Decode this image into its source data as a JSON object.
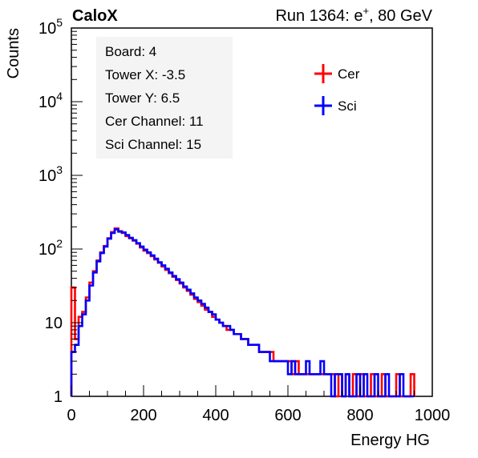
{
  "header": {
    "left": "CaloX",
    "right_prefix": "Run 1364: e",
    "right_sup": "+",
    "right_suffix": ", 80 GeV"
  },
  "info_box": [
    "Board: 4",
    "Tower X: -3.5",
    "Tower Y: 6.5",
    "Cer Channel: 11",
    "Sci Channel: 15"
  ],
  "chart_data": {
    "type": "line",
    "style": "histogram",
    "xlabel": "Energy HG",
    "ylabel": "Counts",
    "xlim": [
      0,
      1000
    ],
    "ylim": [
      1,
      100000
    ],
    "yscale": "log",
    "grid": false,
    "legend_position": "top-right",
    "x_ticks": [
      0,
      200,
      400,
      600,
      800,
      1000
    ],
    "y_ticks": [
      {
        "value": 1,
        "label": "1"
      },
      {
        "value": 10,
        "label": "10"
      },
      {
        "value": 100,
        "label": "10",
        "sup": "2"
      },
      {
        "value": 1000,
        "label": "10",
        "sup": "3"
      },
      {
        "value": 10000,
        "label": "10",
        "sup": "4"
      },
      {
        "value": 100000,
        "label": "10",
        "sup": "5"
      }
    ],
    "series": [
      {
        "name": "Cer",
        "color": "#ff0000",
        "x": [
          5,
          15,
          25,
          35,
          45,
          55,
          65,
          75,
          85,
          95,
          105,
          115,
          125,
          135,
          145,
          155,
          165,
          175,
          185,
          195,
          205,
          215,
          225,
          235,
          245,
          255,
          265,
          275,
          285,
          295,
          305,
          315,
          325,
          335,
          345,
          355,
          365,
          375,
          385,
          395,
          405,
          415,
          425,
          435,
          445,
          455,
          465,
          475,
          485,
          495,
          505,
          515,
          525,
          535,
          545,
          555,
          565,
          575,
          585,
          595,
          605,
          615,
          625,
          635,
          645,
          655,
          665,
          675,
          685,
          695,
          705,
          715,
          725,
          735,
          745,
          755,
          765,
          775,
          785,
          795,
          805,
          815,
          825,
          835,
          845,
          855,
          865,
          875,
          885,
          895,
          905,
          915,
          925,
          935,
          945
        ],
        "values": [
          30,
          6,
          12,
          14,
          22,
          35,
          50,
          70,
          90,
          110,
          140,
          170,
          190,
          175,
          165,
          150,
          140,
          130,
          118,
          105,
          95,
          88,
          80,
          72,
          65,
          58,
          52,
          47,
          42,
          38,
          34,
          30,
          27,
          24,
          21,
          19,
          17,
          15,
          14,
          12,
          11,
          10,
          9,
          8,
          8,
          7,
          7,
          6,
          6,
          5,
          5,
          5,
          4,
          4,
          4,
          4,
          3,
          3,
          3,
          3,
          3,
          2,
          3,
          2,
          2,
          2,
          2,
          2,
          2,
          2,
          2,
          2,
          2,
          1,
          2,
          1,
          2,
          1,
          2,
          1,
          2,
          1,
          1,
          2,
          1,
          1,
          2,
          1,
          1,
          1,
          2,
          1,
          1,
          1,
          2
        ]
      },
      {
        "name": "Sci",
        "color": "#0000ff",
        "x": [
          5,
          15,
          25,
          35,
          45,
          55,
          65,
          75,
          85,
          95,
          105,
          115,
          125,
          135,
          145,
          155,
          165,
          175,
          185,
          195,
          205,
          215,
          225,
          235,
          245,
          255,
          265,
          275,
          285,
          295,
          305,
          315,
          325,
          335,
          345,
          355,
          365,
          375,
          385,
          395,
          405,
          415,
          425,
          435,
          445,
          455,
          465,
          475,
          485,
          495,
          505,
          515,
          525,
          535,
          545,
          555,
          565,
          575,
          585,
          595,
          605,
          615,
          625,
          635,
          645,
          655,
          665,
          675,
          685,
          695,
          705,
          715,
          725,
          735,
          745,
          755,
          765,
          775,
          785,
          795,
          805,
          815,
          825,
          835,
          845,
          855,
          865,
          875,
          885,
          895,
          905,
          915,
          925,
          935,
          945
        ],
        "values": [
          4,
          5,
          9,
          13,
          20,
          32,
          48,
          68,
          88,
          108,
          138,
          165,
          185,
          172,
          168,
          155,
          142,
          132,
          120,
          108,
          98,
          90,
          82,
          74,
          66,
          60,
          54,
          48,
          43,
          39,
          35,
          31,
          28,
          25,
          22,
          20,
          18,
          16,
          14,
          13,
          11,
          10,
          9,
          9,
          8,
          7,
          7,
          6,
          6,
          5,
          5,
          5,
          4,
          4,
          4,
          3,
          3,
          3,
          3,
          3,
          2,
          3,
          2,
          2,
          2,
          3,
          2,
          2,
          2,
          3,
          2,
          2,
          1,
          2,
          2,
          1,
          2,
          1,
          1,
          2,
          1,
          2,
          1,
          1,
          2,
          1,
          1,
          2,
          1,
          1,
          1,
          2,
          1,
          1,
          1
        ]
      }
    ]
  }
}
